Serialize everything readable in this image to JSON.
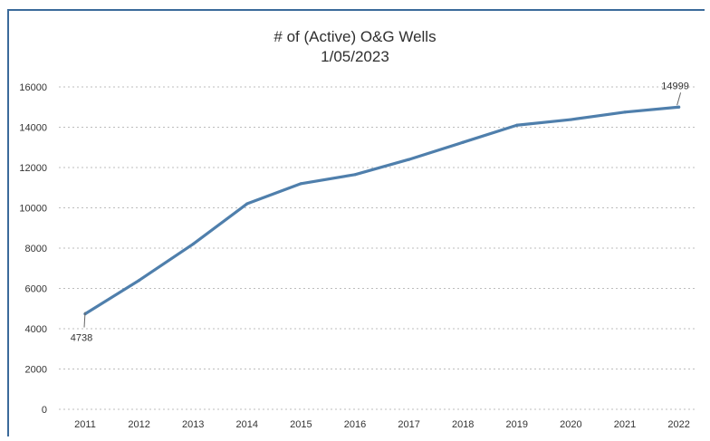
{
  "chart_data": {
    "type": "line",
    "title": "# of (Active) O&G Wells",
    "subtitle": "1/05/2023",
    "xlabel": "",
    "ylabel": "",
    "categories": [
      "2011",
      "2012",
      "2013",
      "2014",
      "2015",
      "2016",
      "2017",
      "2018",
      "2019",
      "2020",
      "2021",
      "2022"
    ],
    "series": [
      {
        "values": [
          4738,
          6400,
          8200,
          10200,
          11200,
          11650,
          12400,
          13250,
          14100,
          14380,
          14750,
          14999
        ]
      }
    ],
    "ylim": [
      0,
      16000
    ],
    "yticks": [
      0,
      2000,
      4000,
      6000,
      8000,
      10000,
      12000,
      14000,
      16000
    ],
    "ytick_labels": [
      "0",
      "2000",
      "4000",
      "6000",
      "8000",
      "10000",
      "12000",
      "14000",
      "16000"
    ],
    "data_labels": [
      {
        "category": "2011",
        "text": "4738"
      },
      {
        "category": "2022",
        "text": "14999"
      }
    ],
    "grid": "horizontal dotted",
    "legend": "none",
    "line_color": "#4f7fac"
  }
}
